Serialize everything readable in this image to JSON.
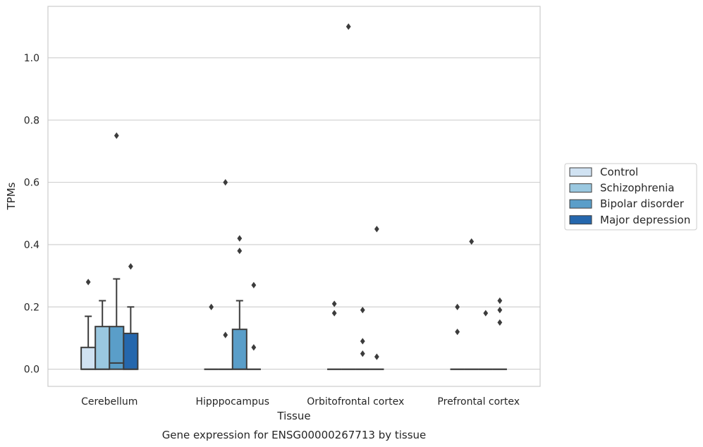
{
  "chart_data": {
    "type": "box",
    "caption": "Gene expression for ENSG00000267713 by tissue",
    "xlabel": "Tissue",
    "ylabel": "TPMs",
    "ylim": [
      -0.055,
      1.165
    ],
    "yticks": [
      0.0,
      0.2,
      0.4,
      0.6,
      0.8,
      1.0
    ],
    "ytick_labels": [
      "0.0",
      "0.2",
      "0.4",
      "0.6",
      "0.8",
      "1.0"
    ],
    "grid": "horizontal",
    "legend_position": "right",
    "categories": [
      "Cerebellum",
      "Hipppocampus",
      "Orbitofrontal cortex",
      "Prefrontal cortex"
    ],
    "series": [
      {
        "name": "Control",
        "color": "#d0e2f2",
        "boxes": [
          {
            "q1": 0.0,
            "median": 0.0,
            "q3": 0.07,
            "whisker_low": 0.0,
            "whisker_high": 0.17,
            "outliers": [
              0.28
            ]
          },
          {
            "q1": 0.0,
            "median": 0.0,
            "q3": 0.0,
            "whisker_low": 0.0,
            "whisker_high": 0.0,
            "outliers": [
              0.2
            ]
          },
          {
            "q1": 0.0,
            "median": 0.0,
            "q3": 0.0,
            "whisker_low": 0.0,
            "whisker_high": 0.0,
            "outliers": [
              0.21,
              0.18
            ]
          },
          {
            "q1": 0.0,
            "median": 0.0,
            "q3": 0.0,
            "whisker_low": 0.0,
            "whisker_high": 0.0,
            "outliers": [
              0.2,
              0.12
            ]
          }
        ]
      },
      {
        "name": "Schizophrenia",
        "color": "#9ac8e0",
        "boxes": [
          {
            "q1": 0.0,
            "median": 0.0,
            "q3": 0.137,
            "whisker_low": 0.0,
            "whisker_high": 0.22,
            "outliers": []
          },
          {
            "q1": 0.0,
            "median": 0.0,
            "q3": 0.0,
            "whisker_low": 0.0,
            "whisker_high": 0.0,
            "outliers": [
              0.6,
              0.11
            ]
          },
          {
            "q1": 0.0,
            "median": 0.0,
            "q3": 0.0,
            "whisker_low": 0.0,
            "whisker_high": 0.0,
            "outliers": [
              1.1
            ]
          },
          {
            "q1": 0.0,
            "median": 0.0,
            "q3": 0.0,
            "whisker_low": 0.0,
            "whisker_high": 0.0,
            "outliers": [
              0.41
            ]
          }
        ]
      },
      {
        "name": "Bipolar disorder",
        "color": "#5a9ec9",
        "boxes": [
          {
            "q1": 0.0,
            "median": 0.02,
            "q3": 0.137,
            "whisker_low": 0.0,
            "whisker_high": 0.29,
            "outliers": [
              0.75
            ]
          },
          {
            "q1": 0.0,
            "median": 0.0,
            "q3": 0.128,
            "whisker_low": 0.0,
            "whisker_high": 0.22,
            "outliers": [
              0.42,
              0.38
            ]
          },
          {
            "q1": 0.0,
            "median": 0.0,
            "q3": 0.0,
            "whisker_low": 0.0,
            "whisker_high": 0.0,
            "outliers": [
              0.19,
              0.09,
              0.05
            ]
          },
          {
            "q1": 0.0,
            "median": 0.0,
            "q3": 0.0,
            "whisker_low": 0.0,
            "whisker_high": 0.0,
            "outliers": [
              0.18
            ]
          }
        ]
      },
      {
        "name": "Major depression",
        "color": "#2567ad",
        "boxes": [
          {
            "q1": 0.0,
            "median": 0.0,
            "q3": 0.115,
            "whisker_low": 0.0,
            "whisker_high": 0.2,
            "outliers": [
              0.33
            ]
          },
          {
            "q1": 0.0,
            "median": 0.0,
            "q3": 0.0,
            "whisker_low": 0.0,
            "whisker_high": 0.0,
            "outliers": [
              0.27,
              0.07
            ]
          },
          {
            "q1": 0.0,
            "median": 0.0,
            "q3": 0.0,
            "whisker_low": 0.0,
            "whisker_high": 0.0,
            "outliers": [
              0.45,
              0.04
            ]
          },
          {
            "q1": 0.0,
            "median": 0.0,
            "q3": 0.0,
            "whisker_low": 0.0,
            "whisker_high": 0.0,
            "outliers": [
              0.22,
              0.19,
              0.15
            ]
          }
        ]
      }
    ]
  }
}
